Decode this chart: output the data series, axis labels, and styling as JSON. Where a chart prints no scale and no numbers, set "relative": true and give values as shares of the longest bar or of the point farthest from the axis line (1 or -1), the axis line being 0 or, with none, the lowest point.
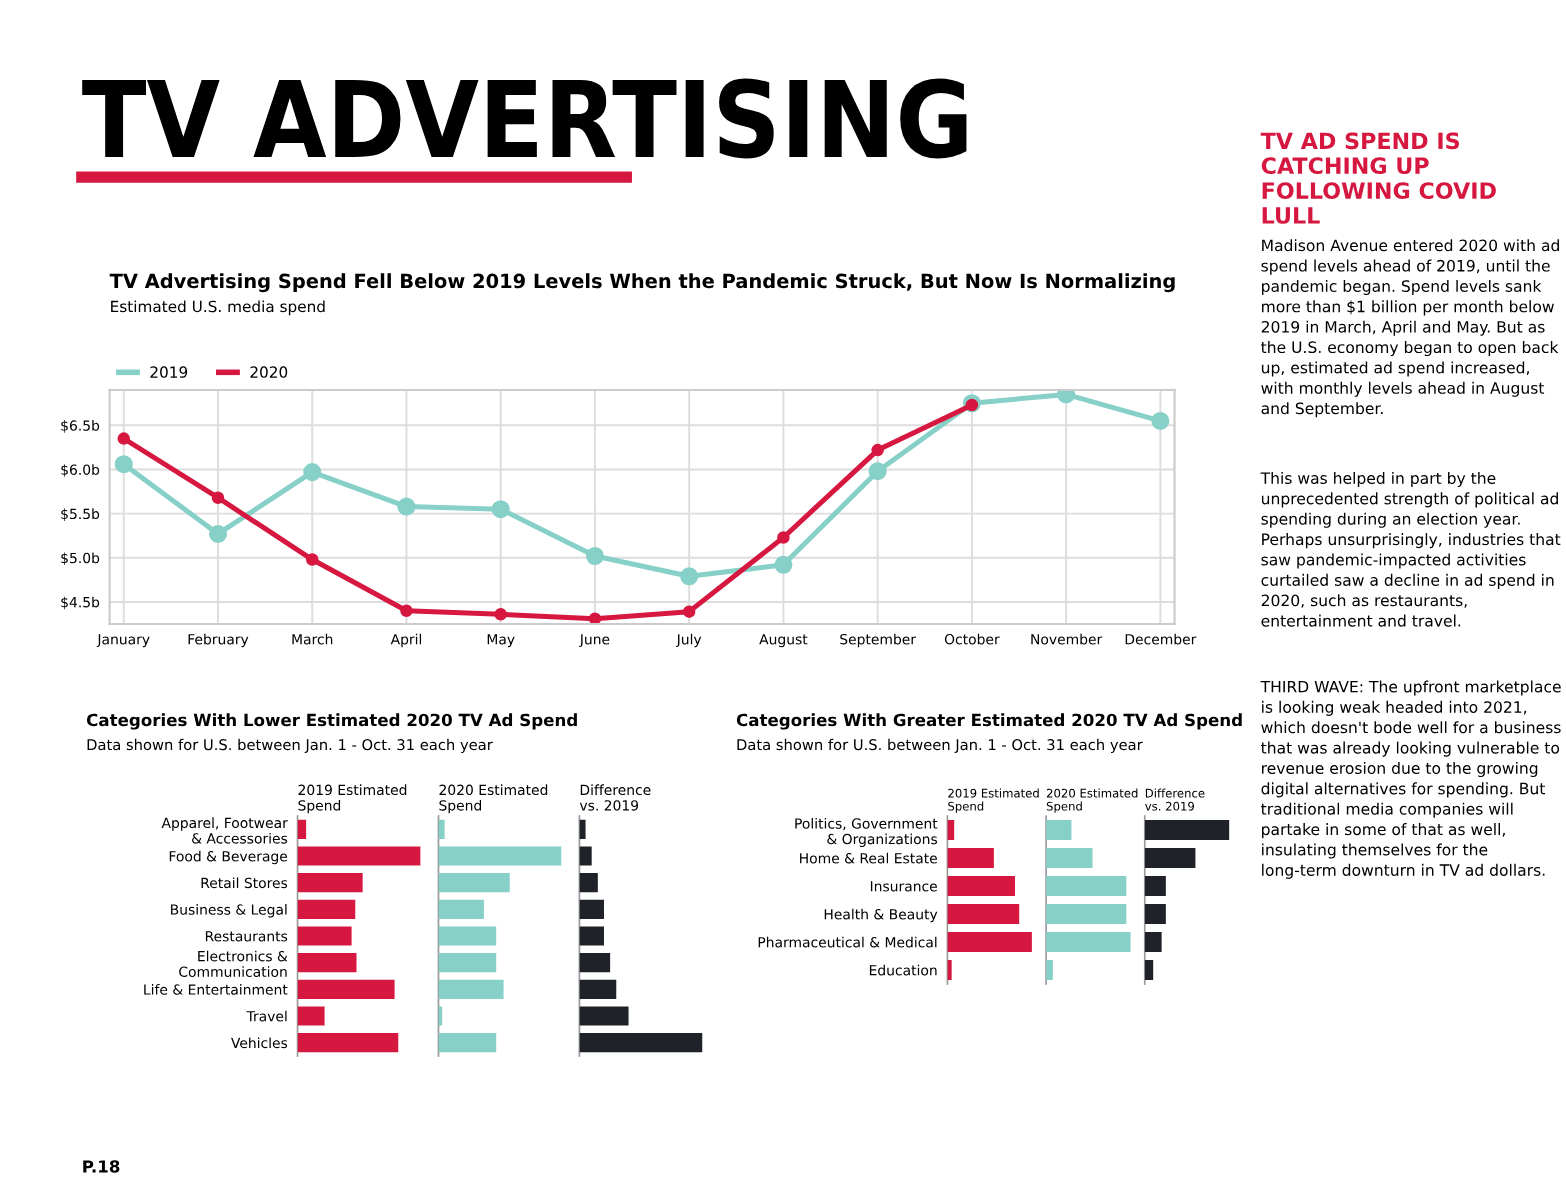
{
  "chart_data": [
    {
      "type": "other",
      "title": "TV ADVERTISING",
      "annotations": [
        "P.18"
      ]
    },
    {
      "type": "line",
      "title": "TV Advertising Spend Fell Below 2019 Levels When the Pandemic Struck, But Now Is Normalizing",
      "subtitle": "Estimated U.S. media spend",
      "categories": [
        "January",
        "February",
        "March",
        "April",
        "May",
        "June",
        "July",
        "August",
        "September",
        "October",
        "November",
        "December"
      ],
      "series": [
        {
          "name": "2019",
          "color": "#86d0c8",
          "values": [
            6.06,
            5.27,
            5.97,
            5.58,
            5.55,
            5.02,
            4.79,
            4.92,
            5.98,
            6.75,
            6.85,
            6.55
          ]
        },
        {
          "name": "2020",
          "color": "#d6173f",
          "values": [
            6.35,
            5.68,
            4.98,
            4.4,
            4.36,
            4.31,
            4.39,
            5.23,
            6.22,
            6.73,
            null,
            null
          ]
        }
      ],
      "ylim": [
        4.25,
        6.9
      ],
      "yticks": [
        {
          "value": 4.5,
          "label": "$4.5b"
        },
        {
          "value": 5.0,
          "label": "$5.0b"
        },
        {
          "value": 5.5,
          "label": "$5.5b"
        },
        {
          "value": 6.0,
          "label": "$6.0b"
        },
        {
          "value": 6.5,
          "label": "$6.5b"
        }
      ],
      "grid": true,
      "legend": "top left",
      "marker": "circle",
      "line_style": "solid"
    },
    {
      "type": "bar",
      "orientation": "horizontal",
      "relative": true,
      "title": "Categories With Lower Estimated 2020 TV Ad Spend",
      "subtitle": "Data shown for U.S. between Jan. 1 - Oct. 31 each year",
      "xlabel": "2019 Estimated Spend",
      "categories": [
        "Apparel, Footwear & Accessories",
        "Food & Beverage",
        "Retail Stores",
        "Business & Legal",
        "Restaurants",
        "Electronics & Communication",
        "Life & Entertainment",
        "Travel",
        "Vehicles"
      ],
      "values": [
        0.07,
        1.0,
        0.53,
        0.47,
        0.44,
        0.48,
        0.79,
        0.22,
        0.82
      ],
      "color": "#d6173f"
    },
    {
      "type": "bar",
      "orientation": "horizontal",
      "relative": true,
      "xlabel": "2020 Estimated Spend",
      "categories": [
        null,
        null,
        null,
        null,
        null,
        null,
        null,
        null,
        null
      ],
      "values": [
        0.05,
        1.0,
        0.58,
        0.37,
        0.47,
        0.47,
        0.53,
        0.03,
        0.47
      ],
      "color": "#86d0c8"
    },
    {
      "type": "bar",
      "orientation": "horizontal",
      "relative": true,
      "xlabel": "Difference vs. 2019",
      "categories": [
        null,
        null,
        null,
        null,
        null,
        null,
        null,
        null,
        null
      ],
      "values": [
        0.05,
        0.1,
        0.15,
        0.2,
        0.2,
        0.25,
        0.3,
        0.4,
        1.0
      ],
      "color": "#1f2329"
    },
    {
      "type": "bar",
      "orientation": "horizontal",
      "relative": true,
      "title": "Categories With Greater Estimated 2020 TV Ad Spend",
      "subtitle": "Data shown for U.S. between Jan. 1 - Oct. 31 each year",
      "xlabel": "2019 Estimated Spend",
      "categories": [
        "Politics, Government & Organizations",
        "Home & Real Estate",
        "Insurance",
        "Health & Beauty",
        "Pharmaceutical & Medical",
        "Education"
      ],
      "values": [
        0.08,
        0.55,
        0.8,
        0.85,
        1.0,
        0.05
      ],
      "color": "#d6173f"
    },
    {
      "type": "bar",
      "orientation": "horizontal",
      "relative": true,
      "xlabel": "2020 Estimated Spend",
      "categories": [
        null,
        null,
        null,
        null,
        null,
        null
      ],
      "values": [
        0.3,
        0.55,
        0.95,
        0.95,
        1.0,
        0.08
      ],
      "color": "#86d0c8"
    },
    {
      "type": "bar",
      "orientation": "horizontal",
      "relative": true,
      "xlabel": "Difference vs. 2019",
      "categories": [
        null,
        null,
        null,
        null,
        null,
        null
      ],
      "values": [
        1.0,
        0.6,
        0.25,
        0.25,
        0.2,
        0.1
      ],
      "color": "#1f2329"
    },
    {
      "type": "other",
      "title": "TV AD SPEND IS CATCHING UP FOLLOWING COVID LULL",
      "annotations": [
        "Madison Avenue entered 2020 with ad spend levels ahead of 2019, until the pandemic began. Spend levels sank more than $1 billion per month below 2019 in March, April and May. But as the U.S. economy began to open back up, estimated ad spend increased, with monthly levels ahead in August and September.",
        "This was helped in part by the unprecedented strength of political ad spending during an election year. Perhaps unsurprisingly, industries that saw pandemic-impacted activities curtailed saw a decline in ad spend in 2020, such as restaurants, entertainment and travel.",
        "THIRD WAVE: The upfront marketplace is looking weak headed into 2021, which doesn't bode well for a business that was already looking vulnerable to revenue erosion due to the growing digital alternatives for spending. But traditional media companies will partake in some of that as well, insulating themselves for the long-term downturn in TV ad dollars."
      ]
    }
  ]
}
